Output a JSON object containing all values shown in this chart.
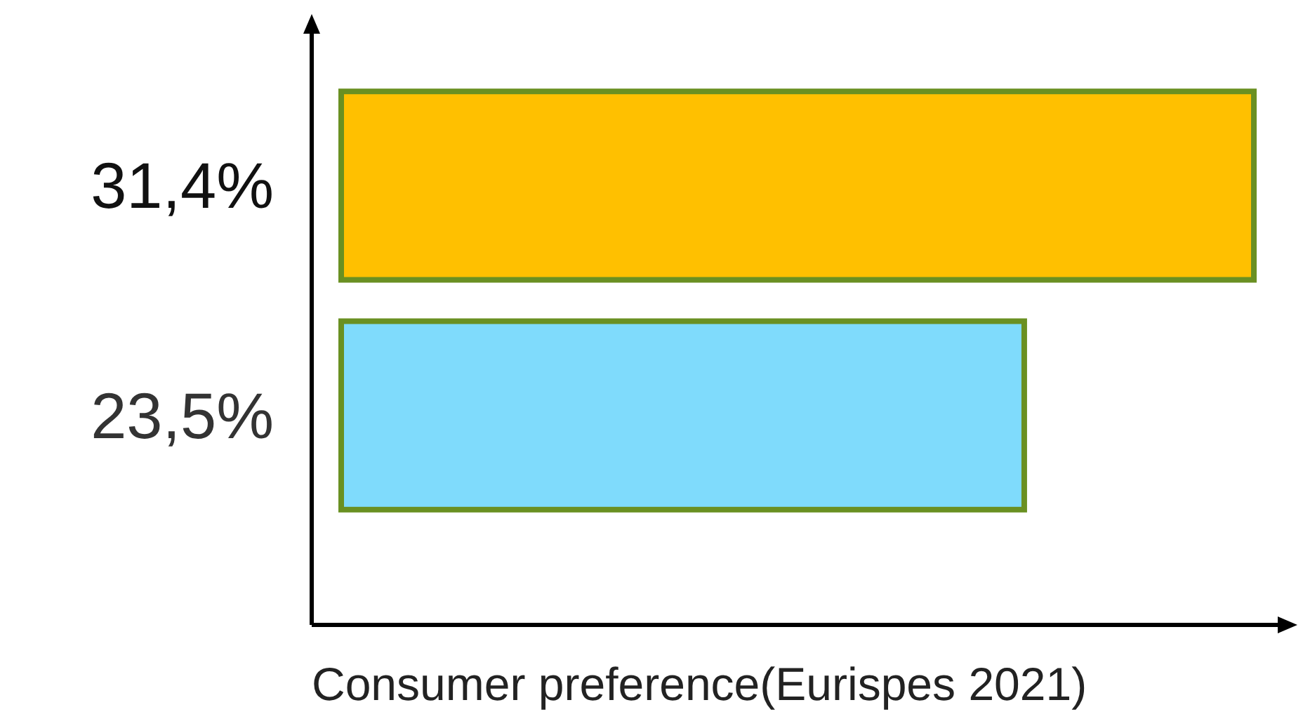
{
  "chart_data": {
    "type": "bar",
    "orientation": "horizontal",
    "xlabel": "Consumer preference(Eurispes 2021)",
    "categories": [
      null,
      null
    ],
    "values": [
      31.4,
      23.5
    ],
    "value_labels": [
      "31,4%",
      "23,5%"
    ],
    "colors": [
      "#ffc000",
      "#7fdbfc"
    ]
  }
}
